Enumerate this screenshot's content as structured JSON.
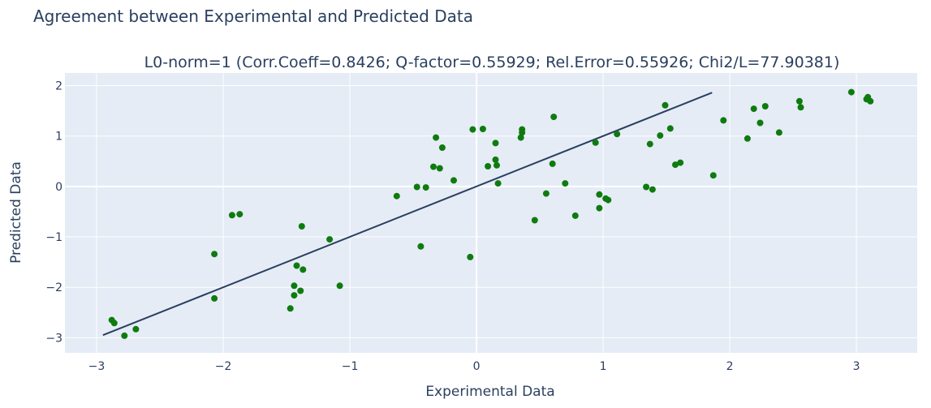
{
  "page": {
    "title": "Agreement between Experimental and Predicted Data"
  },
  "chart_data": {
    "type": "scatter",
    "title": "L0-norm=1 (Corr.Coeff=0.8426; Q-factor=0.55929; Rel.Error=0.55926; Chi2/L=77.90381)",
    "xlabel": "Experimental Data",
    "ylabel": "Predicted Data",
    "xlim": [
      -3.25,
      3.48
    ],
    "ylim": [
      -3.3,
      2.25
    ],
    "x_ticks": [
      -3,
      -2,
      -1,
      0,
      1,
      2,
      3
    ],
    "x_tick_labels": [
      "−3",
      "−2",
      "−1",
      "0",
      "1",
      "2",
      "3"
    ],
    "y_ticks": [
      -3,
      -2,
      -1,
      0,
      1,
      2
    ],
    "y_tick_labels": [
      "−3",
      "−2",
      "−1",
      "0",
      "1",
      "2"
    ],
    "grid": true,
    "colors": {
      "plot_bg": "#e5ecf6",
      "grid": "#ffffff",
      "points": "#0f7b0f",
      "fit_line": "#2a3f5f",
      "text": "#2a3f5f"
    },
    "series": [
      {
        "type": "scatter",
        "points": [
          [
            -2.88,
            -2.65
          ],
          [
            -2.86,
            -2.71
          ],
          [
            -2.78,
            -2.96
          ],
          [
            -2.69,
            -2.83
          ],
          [
            -2.07,
            -1.34
          ],
          [
            -2.07,
            -2.22
          ],
          [
            -1.93,
            -0.57
          ],
          [
            -1.87,
            -0.55
          ],
          [
            -1.47,
            -2.42
          ],
          [
            -1.44,
            -1.97
          ],
          [
            -1.44,
            -2.16
          ],
          [
            -1.42,
            -1.57
          ],
          [
            -1.39,
            -2.07
          ],
          [
            -1.38,
            -0.79
          ],
          [
            -1.37,
            -1.65
          ],
          [
            -1.16,
            -1.05
          ],
          [
            -1.08,
            -1.97
          ],
          [
            -0.63,
            -0.19
          ],
          [
            -0.47,
            -0.01
          ],
          [
            -0.44,
            -1.19
          ],
          [
            -0.4,
            -0.02
          ],
          [
            -0.34,
            0.39
          ],
          [
            -0.32,
            0.97
          ],
          [
            -0.29,
            0.36
          ],
          [
            -0.27,
            0.77
          ],
          [
            -0.18,
            0.12
          ],
          [
            -0.05,
            -1.4
          ],
          [
            -0.03,
            1.13
          ],
          [
            0.05,
            1.14
          ],
          [
            0.09,
            0.4
          ],
          [
            0.15,
            0.86
          ],
          [
            0.15,
            0.53
          ],
          [
            0.16,
            0.42
          ],
          [
            0.17,
            0.06
          ],
          [
            0.35,
            0.97
          ],
          [
            0.36,
            1.07
          ],
          [
            0.36,
            1.13
          ],
          [
            0.46,
            -0.67
          ],
          [
            0.55,
            -0.14
          ],
          [
            0.6,
            0.45
          ],
          [
            0.61,
            1.38
          ],
          [
            0.7,
            0.06
          ],
          [
            0.78,
            -0.58
          ],
          [
            0.94,
            0.87
          ],
          [
            0.97,
            -0.16
          ],
          [
            0.97,
            -0.43
          ],
          [
            1.02,
            -0.24
          ],
          [
            1.04,
            -0.27
          ],
          [
            1.11,
            1.04
          ],
          [
            1.34,
            -0.01
          ],
          [
            1.37,
            0.84
          ],
          [
            1.39,
            -0.06
          ],
          [
            1.45,
            1.01
          ],
          [
            1.49,
            1.61
          ],
          [
            1.53,
            1.15
          ],
          [
            1.57,
            0.43
          ],
          [
            1.61,
            0.47
          ],
          [
            1.87,
            0.22
          ],
          [
            1.95,
            1.31
          ],
          [
            2.14,
            0.95
          ],
          [
            2.19,
            1.54
          ],
          [
            2.24,
            1.26
          ],
          [
            2.28,
            1.59
          ],
          [
            2.39,
            1.07
          ],
          [
            2.55,
            1.69
          ],
          [
            2.56,
            1.57
          ],
          [
            2.96,
            1.87
          ],
          [
            3.08,
            1.73
          ],
          [
            3.09,
            1.77
          ],
          [
            3.11,
            1.69
          ]
        ]
      },
      {
        "type": "line",
        "points": [
          [
            -2.95,
            -2.95
          ],
          [
            1.86,
            1.86
          ]
        ]
      }
    ]
  }
}
